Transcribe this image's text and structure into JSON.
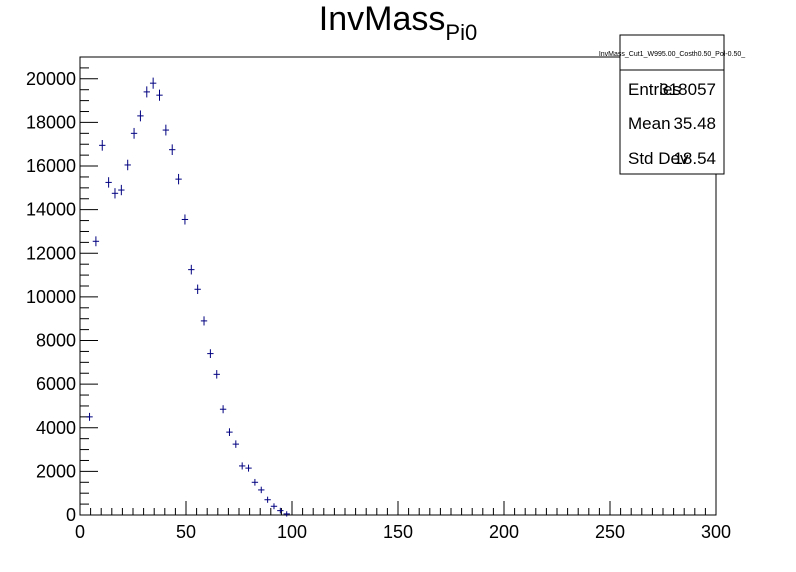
{
  "chart_data": {
    "type": "scatter",
    "title": "InvMass",
    "title_subscript": "Pi0",
    "xlabel": "",
    "ylabel": "",
    "xlim": [
      0,
      300
    ],
    "ylim": [
      0,
      21000
    ],
    "grid": false,
    "x_ticks": [
      0,
      50,
      100,
      150,
      200,
      250,
      300
    ],
    "y_ticks": [
      0,
      2000,
      4000,
      6000,
      8000,
      10000,
      12000,
      14000,
      16000,
      18000,
      20000
    ],
    "x_tick_labels": [
      "0",
      "50",
      "100",
      "150",
      "200",
      "250",
      "300"
    ],
    "y_tick_labels": [
      "0",
      "2000",
      "4000",
      "6000",
      "8000",
      "10000",
      "12000",
      "14000",
      "16000",
      "18000",
      "20000"
    ],
    "marker_color": "#000080",
    "bin_width": 3,
    "series": [
      {
        "x": [
          4.5,
          7.5,
          10.5,
          13.5,
          16.5,
          19.5,
          22.5,
          25.5,
          28.5,
          31.5,
          34.5,
          37.5,
          40.5,
          43.5,
          46.5,
          49.5,
          52.5,
          55.5,
          58.5,
          61.5,
          64.5,
          67.5,
          70.5,
          73.5,
          76.5,
          79.5,
          82.5,
          85.5,
          88.5,
          91.5,
          94.5,
          97.5
        ],
        "y": [
          4500,
          12550,
          16950,
          15250,
          14750,
          14900,
          16050,
          17500,
          18300,
          19400,
          19800,
          19250,
          17650,
          16750,
          15400,
          13550,
          11250,
          10350,
          8900,
          7400,
          6450,
          4850,
          3800,
          3250,
          2250,
          2150,
          1500,
          1150,
          700,
          400,
          200,
          50
        ]
      }
    ]
  },
  "stats_box": {
    "name": "InvMass_Cut1_W995.00_Costh0.50_Pol-0.50_",
    "rows": [
      {
        "label": "Entries",
        "value": "318057"
      },
      {
        "label": "Mean",
        "value": "35.48"
      },
      {
        "label": "Std Dev",
        "value": "18.54"
      }
    ]
  }
}
